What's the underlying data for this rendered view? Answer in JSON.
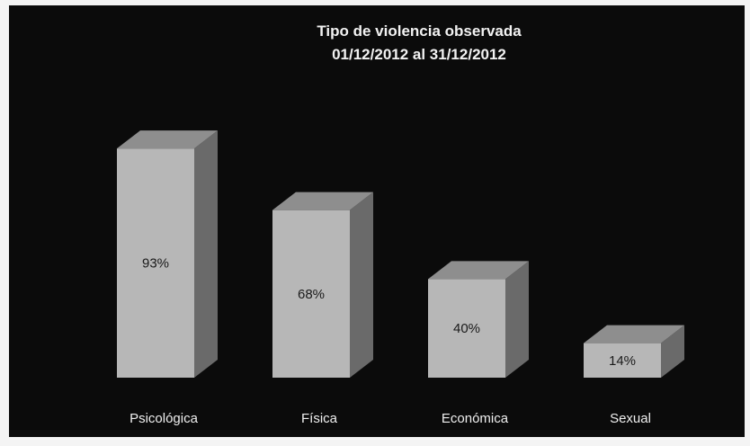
{
  "chart_data": {
    "type": "bar",
    "title": "Tipo de violencia observada",
    "subtitle": "01/12/2012 al 31/12/2012",
    "categories": [
      "Psicológica",
      "Física",
      "Económica",
      "Sexual"
    ],
    "values": [
      93,
      68,
      40,
      14
    ],
    "data_labels": [
      "93%",
      "68%",
      "40%",
      "14%"
    ],
    "xlabel": "",
    "ylabel": "",
    "ylim": [
      0,
      100
    ],
    "grid": false,
    "legend": "none",
    "style": "3d-column"
  },
  "colors": {
    "background": "#0b0b0b",
    "bar_front": "#b7b7b7",
    "bar_top": "#8e8e8e",
    "bar_side": "#6a6a6a",
    "text_light": "#f2f2f2",
    "text_dark": "#1a1a1a"
  }
}
